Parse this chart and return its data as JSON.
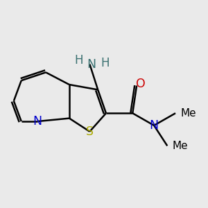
{
  "background_color": "#EAEAEA",
  "figsize": [
    3.0,
    3.0
  ],
  "dpi": 100,
  "bond_lw": 1.8,
  "doff": 0.011,
  "atoms": {
    "N_py": {
      "label": "N",
      "color": "#0000CC",
      "fontsize": 12.5
    },
    "S": {
      "label": "S",
      "color": "#AAAA00",
      "fontsize": 12.5
    },
    "NH2_N": {
      "label": "N",
      "color": "#3A7070",
      "fontsize": 12.5
    },
    "NH2_H1": {
      "label": "H",
      "color": "#3A7070",
      "fontsize": 12.0
    },
    "NH2_H2": {
      "label": "H",
      "color": "#3A7070",
      "fontsize": 12.0
    },
    "O": {
      "label": "O",
      "color": "#CC0000",
      "fontsize": 12.5
    },
    "N_am": {
      "label": "N",
      "color": "#0000CC",
      "fontsize": 12.5
    },
    "Me1": {
      "label": "Me",
      "color": "#000000",
      "fontsize": 11.0
    },
    "Me2": {
      "label": "Me",
      "color": "#000000",
      "fontsize": 11.0
    }
  }
}
